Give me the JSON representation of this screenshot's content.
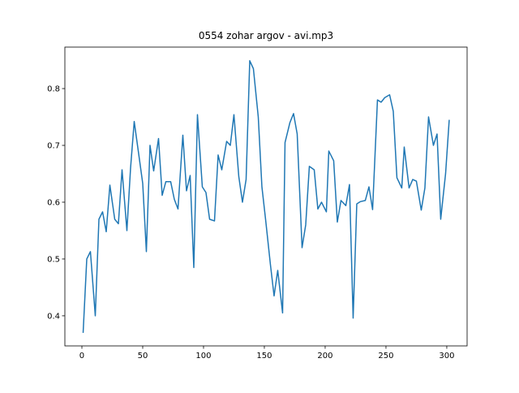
{
  "chart_data": {
    "type": "line",
    "title": "0554 zohar argov - avi.mp3",
    "x": [
      1,
      4,
      7,
      11,
      14,
      17,
      20,
      23,
      27,
      30,
      33,
      37,
      40,
      43,
      47,
      50,
      53,
      56,
      59,
      63,
      66,
      69,
      73,
      76,
      79,
      83,
      86,
      89,
      92,
      95,
      99,
      102,
      105,
      109,
      112,
      115,
      119,
      122,
      125,
      129,
      132,
      135,
      138,
      141,
      145,
      148,
      151,
      155,
      158,
      161,
      165,
      167,
      171,
      174,
      177,
      181,
      184,
      187,
      191,
      194,
      197,
      201,
      203,
      207,
      210,
      213,
      217,
      220,
      223,
      226,
      229,
      233,
      236,
      239,
      243,
      246,
      249,
      253,
      256,
      259,
      263,
      265,
      269,
      272,
      275,
      279,
      282,
      285,
      289,
      292,
      295,
      299,
      302
    ],
    "series": [
      {
        "color": "#1f77b4",
        "values": [
          0.37,
          0.5,
          0.513,
          0.4,
          0.57,
          0.583,
          0.548,
          0.63,
          0.57,
          0.562,
          0.657,
          0.55,
          0.66,
          0.742,
          0.68,
          0.633,
          0.513,
          0.7,
          0.655,
          0.712,
          0.612,
          0.636,
          0.636,
          0.605,
          0.588,
          0.718,
          0.62,
          0.647,
          0.485,
          0.754,
          0.627,
          0.617,
          0.57,
          0.567,
          0.683,
          0.657,
          0.707,
          0.7,
          0.754,
          0.645,
          0.6,
          0.64,
          0.849,
          0.835,
          0.75,
          0.627,
          0.57,
          0.49,
          0.435,
          0.48,
          0.405,
          0.705,
          0.74,
          0.756,
          0.72,
          0.52,
          0.56,
          0.663,
          0.657,
          0.588,
          0.6,
          0.583,
          0.69,
          0.673,
          0.565,
          0.603,
          0.594,
          0.631,
          0.396,
          0.597,
          0.601,
          0.603,
          0.627,
          0.587,
          0.78,
          0.776,
          0.784,
          0.789,
          0.76,
          0.643,
          0.625,
          0.697,
          0.625,
          0.64,
          0.637,
          0.586,
          0.625,
          0.75,
          0.7,
          0.72,
          0.57,
          0.65,
          0.745
        ]
      }
    ],
    "xlim": [
      -14,
      316.7
    ],
    "ylim": [
      0.347,
      0.873
    ],
    "xticks": [
      0,
      50,
      100,
      150,
      200,
      250,
      300
    ],
    "yticks": [
      0.4,
      0.5,
      0.6,
      0.7,
      0.8
    ]
  }
}
